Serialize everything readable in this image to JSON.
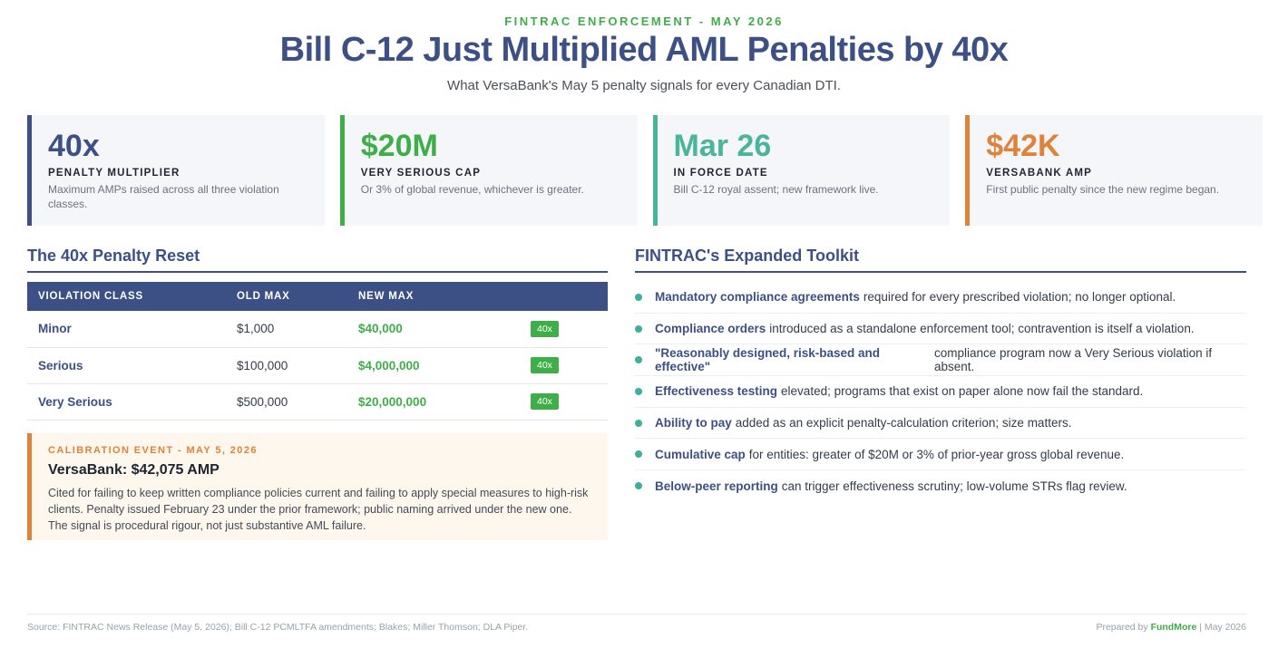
{
  "header": {
    "eyebrow": "FINTRAC ENFORCEMENT - MAY 2026",
    "title": "Bill C-12 Just Multiplied AML Penalties by 40x",
    "subtitle": "What VersaBank's May 5 penalty signals for every Canadian DTI."
  },
  "stats": [
    {
      "value": "40x",
      "label": "PENALTY MULTIPLIER",
      "desc": "Maximum AMPs raised across all three violation classes.",
      "color": "#3d5085"
    },
    {
      "value": "$20M",
      "label": "VERY SERIOUS CAP",
      "desc": "Or 3% of global revenue, whichever is greater.",
      "color": "#3fae49"
    },
    {
      "value": "Mar 26",
      "label": "IN FORCE DATE",
      "desc": "Bill C-12 royal assent; new framework live.",
      "color": "#4bb59a"
    },
    {
      "value": "$42K",
      "label": "VERSABANK AMP",
      "desc": "First public penalty since the new regime began.",
      "color": "#e0833a"
    }
  ],
  "penalty_reset": {
    "heading": "The 40x Penalty Reset",
    "columns": [
      "VIOLATION CLASS",
      "OLD MAX",
      "NEW MAX",
      ""
    ],
    "rows": [
      {
        "class": "Minor",
        "old": "$1,000",
        "new": "$40,000",
        "badge": "40x"
      },
      {
        "class": "Serious",
        "old": "$100,000",
        "new": "$4,000,000",
        "badge": "40x"
      },
      {
        "class": "Very Serious",
        "old": "$500,000",
        "new": "$20,000,000",
        "badge": "40x"
      }
    ]
  },
  "callout": {
    "kicker": "CALIBRATION EVENT - MAY 5, 2026",
    "headline": "VersaBank: $42,075 AMP",
    "body": "Cited for failing to keep written compliance policies current and failing to apply special measures to high-risk clients. Penalty issued February 23 under the prior framework; public naming arrived under the new one. The signal is procedural rigour, not just substantive AML failure."
  },
  "toolkit": {
    "heading": "FINTRAC's Expanded Toolkit",
    "items": [
      {
        "key": "Mandatory compliance agreements",
        "text": "required for every prescribed violation; no longer optional."
      },
      {
        "key": "Compliance orders",
        "text": "introduced as a standalone enforcement tool; contravention is itself a violation."
      },
      {
        "key": "\"Reasonably designed, risk-based and effective\"",
        "text": "compliance program now a Very Serious violation if absent."
      },
      {
        "key": "Effectiveness testing",
        "text": "elevated; programs that exist on paper alone now fail the standard."
      },
      {
        "key": "Ability to pay",
        "text": "added as an explicit penalty-calculation criterion; size matters."
      },
      {
        "key": "Cumulative cap",
        "text": "for entities: greater of $20M or 3% of prior-year gross global revenue."
      },
      {
        "key": "Below-peer reporting",
        "text": "can trigger effectiveness scrutiny; low-volume STRs flag review."
      }
    ]
  },
  "footer": {
    "source": "Source: FINTRAC News Release (May 5, 2026); Bill C-12 PCMLTFA amendments; Blakes; Miller Thomson; DLA Piper.",
    "prepared_by": "Prepared by",
    "brand": "FundMore",
    "date": "| May 2026"
  }
}
